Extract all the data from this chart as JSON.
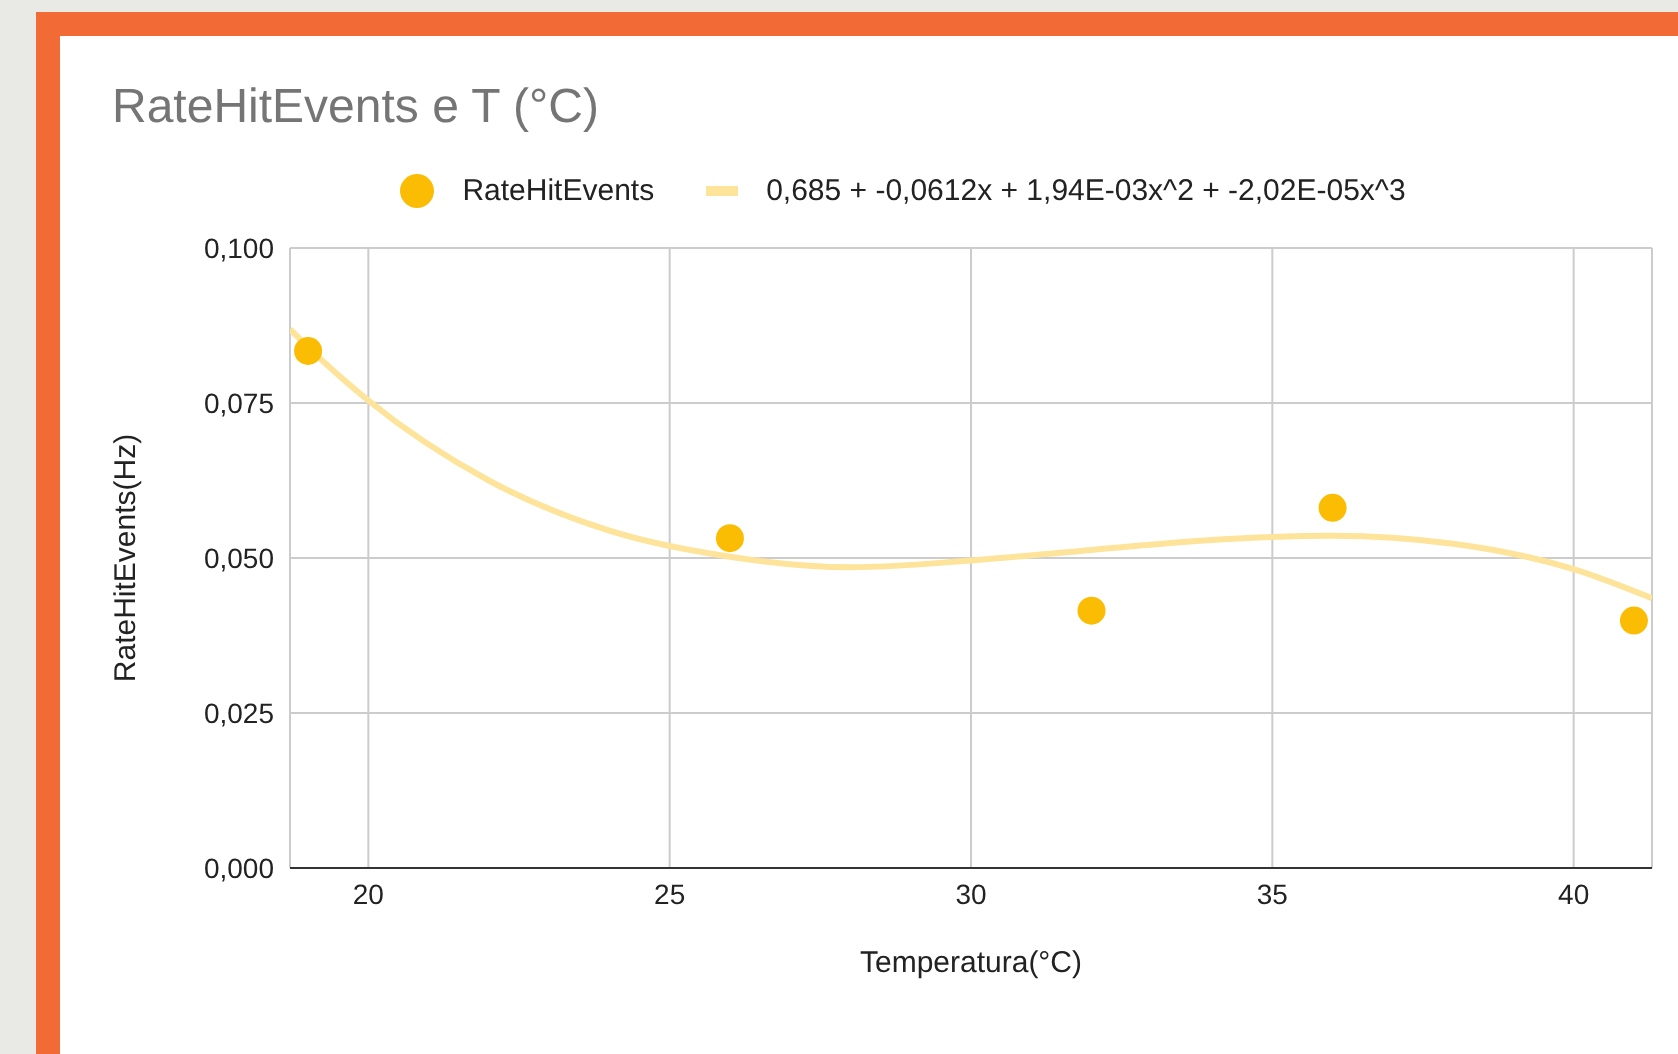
{
  "chart_data": {
    "type": "scatter",
    "title": "RateHitEvents e T (°C)",
    "xlabel": "Temperatura(°C)",
    "ylabel": "RateHitEvents(Hz)",
    "xlim": [
      18.7,
      41.3
    ],
    "xticks": [
      20,
      25,
      30,
      35,
      40
    ],
    "ylim": [
      0,
      0.1
    ],
    "yticks": [
      {
        "value": 0,
        "label": "0,000"
      },
      {
        "value": 0.025,
        "label": "0,025"
      },
      {
        "value": 0.05,
        "label": "0,050"
      },
      {
        "value": 0.075,
        "label": "0,075"
      },
      {
        "value": 0.1,
        "label": "0,100"
      }
    ],
    "grid": true,
    "legend": "top",
    "series": [
      {
        "name": "RateHitEvents",
        "marker": "circle",
        "color": "#fbbc04",
        "x": [
          19,
          26,
          32,
          36,
          41
        ],
        "values": [
          0.0834,
          0.0532,
          0.0415,
          0.0581,
          0.0399
        ]
      },
      {
        "name": "0,685 + -0,0612x + 1,94E-03x^2 + -2,02E-05x^3",
        "type": "line",
        "marker": "none",
        "color": "#fde49a",
        "x": [
          18.7,
          19,
          20,
          22,
          24,
          26,
          28,
          30,
          32,
          34,
          36,
          38,
          40,
          41.3
        ],
        "values": [
          0.0869,
          0.084,
          0.0754,
          0.0625,
          0.0544,
          0.0502,
          0.0485,
          0.0496,
          0.0513,
          0.0529,
          0.0536,
          0.0523,
          0.0482,
          0.0435
        ]
      }
    ]
  }
}
